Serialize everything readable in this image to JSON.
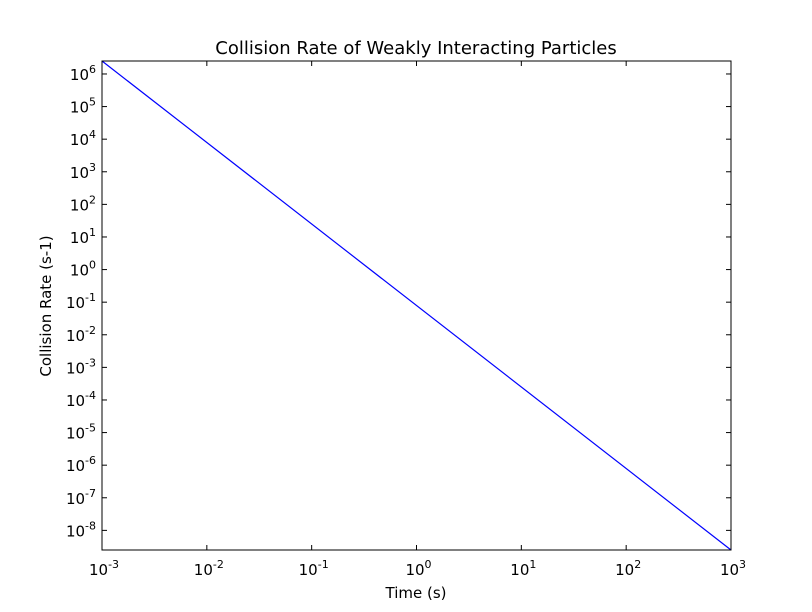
{
  "chart_data": {
    "type": "line",
    "title": "Collision Rate of Weakly Interacting Particles",
    "xlabel": "Time (s)",
    "ylabel": "Collision Rate (s-1)",
    "xscale": "log",
    "yscale": "log",
    "xlim": [
      0.001,
      1000
    ],
    "ylim": [
      2.5e-09,
      2500000.0
    ],
    "xticks": [
      {
        "base": "10",
        "exp": "-3",
        "value": 0.001
      },
      {
        "base": "10",
        "exp": "-2",
        "value": 0.01
      },
      {
        "base": "10",
        "exp": "-1",
        "value": 0.1
      },
      {
        "base": "10",
        "exp": "0",
        "value": 1
      },
      {
        "base": "10",
        "exp": "1",
        "value": 10
      },
      {
        "base": "10",
        "exp": "2",
        "value": 100
      },
      {
        "base": "10",
        "exp": "3",
        "value": 1000
      }
    ],
    "yticks": [
      {
        "base": "10",
        "exp": "6",
        "value": 1000000.0
      },
      {
        "base": "10",
        "exp": "5",
        "value": 100000.0
      },
      {
        "base": "10",
        "exp": "4",
        "value": 10000.0
      },
      {
        "base": "10",
        "exp": "3",
        "value": 1000.0
      },
      {
        "base": "10",
        "exp": "2",
        "value": 100.0
      },
      {
        "base": "10",
        "exp": "1",
        "value": 10.0
      },
      {
        "base": "10",
        "exp": "0",
        "value": 1
      },
      {
        "base": "10",
        "exp": "-1",
        "value": 0.1
      },
      {
        "base": "10",
        "exp": "-2",
        "value": 0.01
      },
      {
        "base": "10",
        "exp": "-3",
        "value": 0.001
      },
      {
        "base": "10",
        "exp": "-4",
        "value": 0.0001
      },
      {
        "base": "10",
        "exp": "-5",
        "value": 1e-05
      },
      {
        "base": "10",
        "exp": "-6",
        "value": 1e-06
      },
      {
        "base": "10",
        "exp": "-7",
        "value": 1e-07
      },
      {
        "base": "10",
        "exp": "-8",
        "value": 1e-08
      }
    ],
    "grid": false,
    "series": [
      {
        "color": "#0000ff",
        "x": [
          0.001,
          1000
        ],
        "y": [
          2500000.0,
          2.5e-09
        ]
      }
    ]
  }
}
